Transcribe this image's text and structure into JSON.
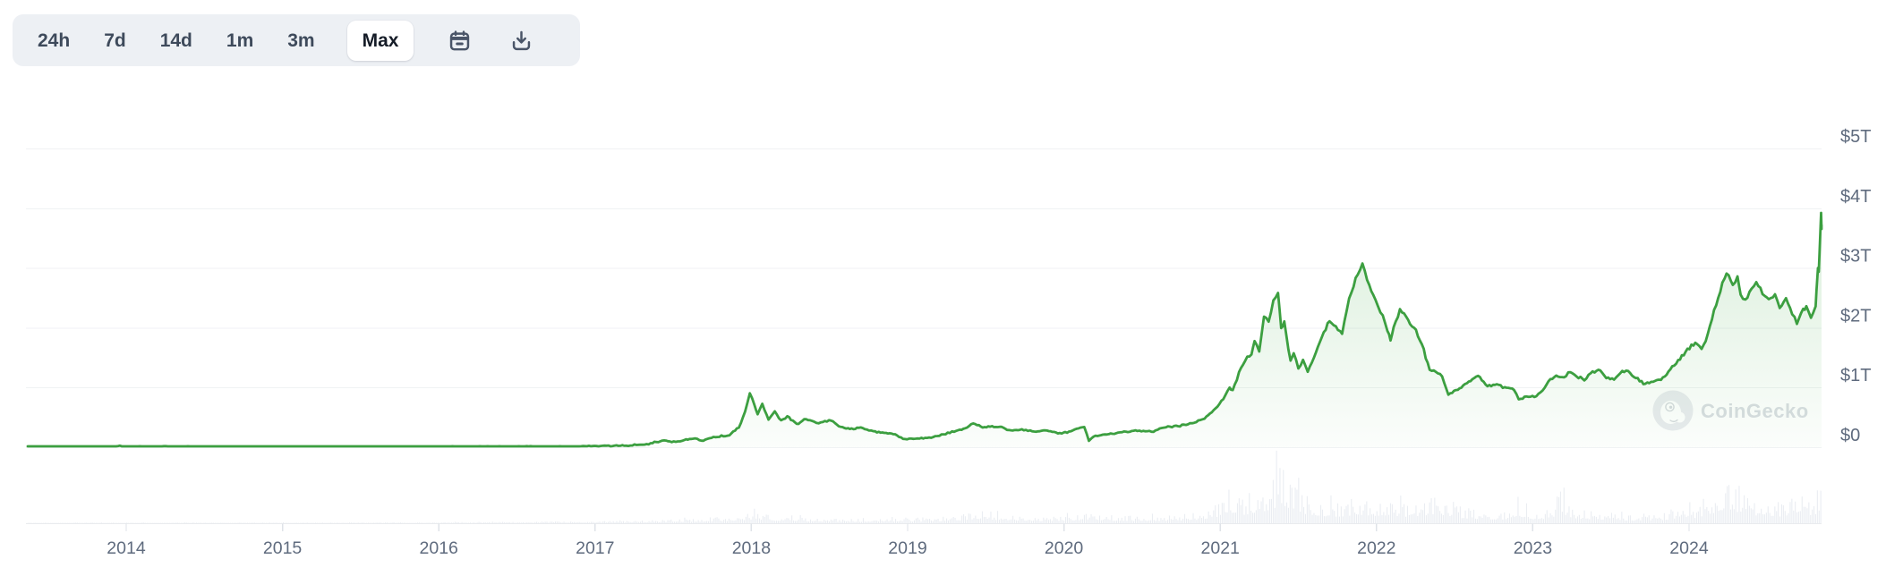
{
  "toolbar": {
    "ranges": [
      {
        "label": "24h",
        "active": false
      },
      {
        "label": "7d",
        "active": false
      },
      {
        "label": "14d",
        "active": false
      },
      {
        "label": "1m",
        "active": false
      },
      {
        "label": "3m",
        "active": false
      },
      {
        "label": "Max",
        "active": true
      }
    ]
  },
  "watermark": {
    "text": "CoinGecko"
  },
  "colors": {
    "line": "#3c9f40",
    "fill": "#4caf50",
    "volume_bar": "#eaedf2",
    "axis_text": "#5f6b7e",
    "grid": "#f0f2f4",
    "axis_line": "#e9ebee",
    "tick_mark": "#dfe3e8",
    "toolbar_bg": "#edf0f4",
    "toolbar_text": "#3e4a5b",
    "watermark_circle": "#e9ebef",
    "watermark_text": "#d9dde2",
    "icon_stroke": "#4a5568"
  },
  "chart_data": {
    "type": "line",
    "description": "Total cryptocurrency market capitalization, Max range, with relative volume bars",
    "grid": "horizontal",
    "legend": "none",
    "x_axis": {
      "tick_labels": [
        "2014",
        "2015",
        "2016",
        "2017",
        "2018",
        "2019",
        "2020",
        "2021",
        "2022",
        "2023",
        "2024"
      ],
      "range_years": [
        2013.37,
        2024.86
      ]
    },
    "y_axis": {
      "side": "right",
      "tick_labels": [
        "$0",
        "$1T",
        "$2T",
        "$3T",
        "$4T",
        "$5T"
      ],
      "tick_values_trillions": [
        0,
        1,
        2,
        3,
        4,
        5
      ],
      "ylim": [
        0,
        5.3
      ]
    },
    "series": [
      {
        "name": "total_market_cap",
        "unit": "USD trillions",
        "points": [
          [
            2013.37,
            0.002
          ],
          [
            2013.59,
            0.003
          ],
          [
            2013.76,
            0.006
          ],
          [
            2013.83,
            0.013
          ],
          [
            2013.91,
            0.015
          ],
          [
            2014.01,
            0.011
          ],
          [
            2014.19,
            0.008
          ],
          [
            2014.51,
            0.008
          ],
          [
            2014.8,
            0.005
          ],
          [
            2015.01,
            0.005
          ],
          [
            2015.23,
            0.004
          ],
          [
            2015.6,
            0.004
          ],
          [
            2016.0,
            0.007
          ],
          [
            2016.4,
            0.009
          ],
          [
            2016.8,
            0.013
          ],
          [
            2017.01,
            0.018
          ],
          [
            2017.2,
            0.027
          ],
          [
            2017.33,
            0.05
          ],
          [
            2017.43,
            0.11
          ],
          [
            2017.49,
            0.09
          ],
          [
            2017.57,
            0.115
          ],
          [
            2017.64,
            0.15
          ],
          [
            2017.68,
            0.11
          ],
          [
            2017.77,
            0.17
          ],
          [
            2017.86,
            0.2
          ],
          [
            2017.92,
            0.33
          ],
          [
            2017.96,
            0.6
          ],
          [
            2017.99,
            0.9
          ],
          [
            2018.02,
            0.7
          ],
          [
            2018.04,
            0.55
          ],
          [
            2018.07,
            0.72
          ],
          [
            2018.11,
            0.46
          ],
          [
            2018.15,
            0.6
          ],
          [
            2018.19,
            0.45
          ],
          [
            2018.23,
            0.52
          ],
          [
            2018.29,
            0.39
          ],
          [
            2018.35,
            0.47
          ],
          [
            2018.43,
            0.4
          ],
          [
            2018.51,
            0.45
          ],
          [
            2018.56,
            0.35
          ],
          [
            2018.63,
            0.3
          ],
          [
            2018.7,
            0.33
          ],
          [
            2018.78,
            0.27
          ],
          [
            2018.85,
            0.24
          ],
          [
            2018.92,
            0.22
          ],
          [
            2018.97,
            0.14
          ],
          [
            2019.05,
            0.14
          ],
          [
            2019.15,
            0.16
          ],
          [
            2019.23,
            0.22
          ],
          [
            2019.31,
            0.27
          ],
          [
            2019.38,
            0.33
          ],
          [
            2019.42,
            0.4
          ],
          [
            2019.48,
            0.33
          ],
          [
            2019.54,
            0.35
          ],
          [
            2019.6,
            0.34
          ],
          [
            2019.66,
            0.28
          ],
          [
            2019.73,
            0.3
          ],
          [
            2019.81,
            0.26
          ],
          [
            2019.88,
            0.28
          ],
          [
            2019.95,
            0.24
          ],
          [
            2020.02,
            0.24
          ],
          [
            2020.08,
            0.31
          ],
          [
            2020.13,
            0.34
          ],
          [
            2020.16,
            0.11
          ],
          [
            2020.19,
            0.18
          ],
          [
            2020.25,
            0.21
          ],
          [
            2020.36,
            0.25
          ],
          [
            2020.47,
            0.27
          ],
          [
            2020.56,
            0.26
          ],
          [
            2020.64,
            0.33
          ],
          [
            2020.73,
            0.35
          ],
          [
            2020.82,
            0.4
          ],
          [
            2020.9,
            0.48
          ],
          [
            2020.97,
            0.65
          ],
          [
            2021.02,
            0.8
          ],
          [
            2021.06,
            1.0
          ],
          [
            2021.08,
            0.95
          ],
          [
            2021.12,
            1.25
          ],
          [
            2021.16,
            1.45
          ],
          [
            2021.2,
            1.55
          ],
          [
            2021.22,
            1.78
          ],
          [
            2021.25,
            1.6
          ],
          [
            2021.28,
            2.2
          ],
          [
            2021.31,
            2.1
          ],
          [
            2021.34,
            2.45
          ],
          [
            2021.37,
            2.58
          ],
          [
            2021.39,
            2.0
          ],
          [
            2021.41,
            2.1
          ],
          [
            2021.45,
            1.45
          ],
          [
            2021.47,
            1.58
          ],
          [
            2021.5,
            1.32
          ],
          [
            2021.53,
            1.45
          ],
          [
            2021.56,
            1.26
          ],
          [
            2021.6,
            1.5
          ],
          [
            2021.65,
            1.85
          ],
          [
            2021.7,
            2.1
          ],
          [
            2021.74,
            2.02
          ],
          [
            2021.78,
            1.9
          ],
          [
            2021.81,
            2.3
          ],
          [
            2021.84,
            2.6
          ],
          [
            2021.88,
            2.9
          ],
          [
            2021.91,
            3.07
          ],
          [
            2021.94,
            2.8
          ],
          [
            2021.98,
            2.55
          ],
          [
            2022.01,
            2.35
          ],
          [
            2022.04,
            2.2
          ],
          [
            2022.07,
            1.95
          ],
          [
            2022.09,
            1.78
          ],
          [
            2022.11,
            2.0
          ],
          [
            2022.15,
            2.3
          ],
          [
            2022.19,
            2.18
          ],
          [
            2022.24,
            2.0
          ],
          [
            2022.29,
            1.72
          ],
          [
            2022.34,
            1.3
          ],
          [
            2022.38,
            1.26
          ],
          [
            2022.42,
            1.18
          ],
          [
            2022.46,
            0.88
          ],
          [
            2022.52,
            0.96
          ],
          [
            2022.59,
            1.1
          ],
          [
            2022.65,
            1.2
          ],
          [
            2022.71,
            1.02
          ],
          [
            2022.77,
            1.06
          ],
          [
            2022.82,
            1.0
          ],
          [
            2022.88,
            0.96
          ],
          [
            2022.91,
            0.8
          ],
          [
            2022.96,
            0.85
          ],
          [
            2023.01,
            0.84
          ],
          [
            2023.05,
            0.92
          ],
          [
            2023.1,
            1.1
          ],
          [
            2023.15,
            1.2
          ],
          [
            2023.2,
            1.17
          ],
          [
            2023.24,
            1.26
          ],
          [
            2023.28,
            1.18
          ],
          [
            2023.33,
            1.12
          ],
          [
            2023.37,
            1.24
          ],
          [
            2023.42,
            1.3
          ],
          [
            2023.47,
            1.16
          ],
          [
            2023.52,
            1.13
          ],
          [
            2023.56,
            1.24
          ],
          [
            2023.61,
            1.27
          ],
          [
            2023.66,
            1.15
          ],
          [
            2023.72,
            1.06
          ],
          [
            2023.77,
            1.09
          ],
          [
            2023.82,
            1.12
          ],
          [
            2023.88,
            1.3
          ],
          [
            2023.93,
            1.45
          ],
          [
            2023.99,
            1.65
          ],
          [
            2024.04,
            1.75
          ],
          [
            2024.08,
            1.64
          ],
          [
            2024.12,
            1.9
          ],
          [
            2024.16,
            2.3
          ],
          [
            2024.2,
            2.6
          ],
          [
            2024.24,
            2.9
          ],
          [
            2024.28,
            2.72
          ],
          [
            2024.31,
            2.85
          ],
          [
            2024.33,
            2.56
          ],
          [
            2024.36,
            2.47
          ],
          [
            2024.4,
            2.66
          ],
          [
            2024.43,
            2.76
          ],
          [
            2024.47,
            2.56
          ],
          [
            2024.51,
            2.46
          ],
          [
            2024.55,
            2.56
          ],
          [
            2024.58,
            2.32
          ],
          [
            2024.62,
            2.5
          ],
          [
            2024.66,
            2.22
          ],
          [
            2024.69,
            2.06
          ],
          [
            2024.73,
            2.32
          ],
          [
            2024.75,
            2.36
          ],
          [
            2024.78,
            2.16
          ],
          [
            2024.81,
            2.36
          ],
          [
            2024.815,
            2.6
          ],
          [
            2024.825,
            3.0
          ],
          [
            2024.83,
            2.95
          ],
          [
            2024.838,
            3.45
          ],
          [
            2024.845,
            3.93
          ],
          [
            2024.85,
            3.65
          ],
          [
            2024.853,
            3.72
          ]
        ]
      },
      {
        "name": "volume",
        "unit": "relative",
        "envelope": [
          [
            2013.4,
            0.6
          ],
          [
            2015.0,
            0.8
          ],
          [
            2016.0,
            1
          ],
          [
            2016.8,
            2
          ],
          [
            2017.3,
            3
          ],
          [
            2017.6,
            5
          ],
          [
            2017.85,
            8
          ],
          [
            2017.99,
            13
          ],
          [
            2018.1,
            10
          ],
          [
            2018.3,
            7
          ],
          [
            2018.5,
            5.5
          ],
          [
            2018.75,
            4.5
          ],
          [
            2018.95,
            7
          ],
          [
            2019.1,
            5
          ],
          [
            2019.3,
            9
          ],
          [
            2019.46,
            16
          ],
          [
            2019.6,
            11
          ],
          [
            2019.8,
            8
          ],
          [
            2020.0,
            8
          ],
          [
            2020.17,
            14
          ],
          [
            2020.3,
            9
          ],
          [
            2020.5,
            8
          ],
          [
            2020.7,
            9
          ],
          [
            2020.85,
            12
          ],
          [
            2020.97,
            22
          ],
          [
            2021.05,
            38
          ],
          [
            2021.15,
            30
          ],
          [
            2021.25,
            42
          ],
          [
            2021.33,
            50
          ],
          [
            2021.38,
            72
          ],
          [
            2021.45,
            48
          ],
          [
            2021.55,
            32
          ],
          [
            2021.65,
            26
          ],
          [
            2021.75,
            24
          ],
          [
            2021.85,
            28
          ],
          [
            2021.92,
            30
          ],
          [
            2022.0,
            27
          ],
          [
            2022.08,
            30
          ],
          [
            2022.2,
            22
          ],
          [
            2022.3,
            24
          ],
          [
            2022.35,
            34
          ],
          [
            2022.45,
            28
          ],
          [
            2022.55,
            18
          ],
          [
            2022.7,
            14
          ],
          [
            2022.82,
            13
          ],
          [
            2022.9,
            26
          ],
          [
            2023.0,
            14
          ],
          [
            2023.1,
            15
          ],
          [
            2023.18,
            38
          ],
          [
            2023.25,
            18
          ],
          [
            2023.4,
            14
          ],
          [
            2023.55,
            11
          ],
          [
            2023.7,
            9
          ],
          [
            2023.85,
            12
          ],
          [
            2023.95,
            16
          ],
          [
            2024.05,
            20
          ],
          [
            2024.12,
            30
          ],
          [
            2024.2,
            48
          ],
          [
            2024.26,
            52
          ],
          [
            2024.35,
            32
          ],
          [
            2024.45,
            28
          ],
          [
            2024.55,
            24
          ],
          [
            2024.65,
            28
          ],
          [
            2024.7,
            36
          ],
          [
            2024.78,
            24
          ],
          [
            2024.82,
            38
          ],
          [
            2024.845,
            62
          ],
          [
            2024.85,
            58
          ]
        ]
      }
    ]
  }
}
